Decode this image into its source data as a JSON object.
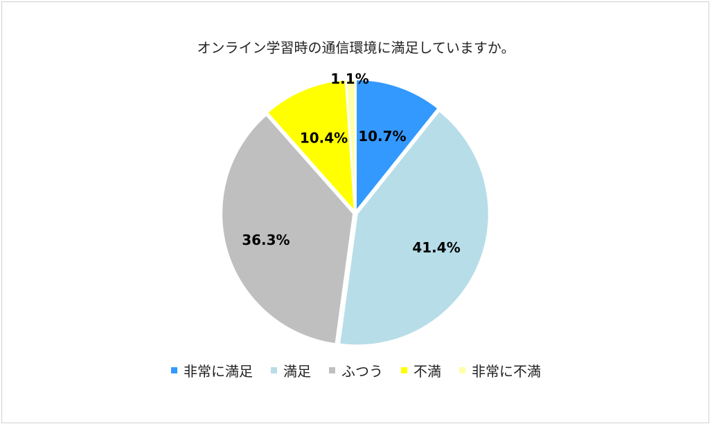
{
  "chart_data": {
    "type": "pie",
    "title": "オンライン学習時の通信環境に満足していますか。",
    "categories": [
      "非常に満足",
      "満足",
      "ふつう",
      "不満",
      "非常に不満"
    ],
    "values": [
      10.7,
      41.4,
      36.3,
      10.4,
      1.1
    ],
    "labels": [
      "10.7%",
      "41.4%",
      "36.3%",
      "10.4%",
      "1.1%"
    ],
    "colors": [
      "#3399FF",
      "#B7DDE8",
      "#BFBFBF",
      "#FFFF00",
      "#FFFFAA"
    ],
    "legend_position": "bottom",
    "start_angle": "12 o'clock, clockwise"
  }
}
